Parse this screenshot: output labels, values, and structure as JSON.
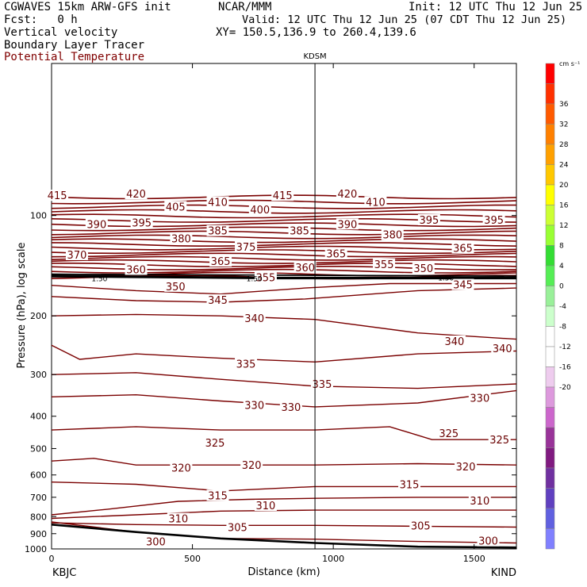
{
  "header": {
    "line1_left": "CGWAVES 15km ARW-GFS init",
    "line1_mid": "NCAR/MMM",
    "line1_right": "Init: 12 UTC Thu 12 Jun 25",
    "fcst": "Fcst:   0 h",
    "valid": "Valid: 12 UTC Thu 12 Jun 25 (07 CDT Thu 12 Jun 25)",
    "field1": "Vertical velocity",
    "xy": "XY= 150.5,136.9 to 260.4,139.6",
    "field2": "Boundary Layer Tracer",
    "field3": "Potential Temperature"
  },
  "chart_data": {
    "type": "cross-section contour",
    "title": "",
    "xlabel": "Distance (km)",
    "ylabel": "Pressure (hPa), log scale",
    "xlim": [
      0,
      1650
    ],
    "x_ticks": [
      0,
      500,
      1000,
      1500
    ],
    "y_ticks": [
      100,
      200,
      300,
      400,
      500,
      600,
      700,
      800,
      900,
      1000
    ],
    "y_scale": "log",
    "left_station": "KBJC",
    "right_station": "KIND",
    "marker": {
      "label": "KDSM",
      "x": 935
    },
    "colorbar": {
      "units": "cm s⁻¹",
      "labels": [
        36,
        32,
        28,
        24,
        20,
        16,
        12,
        8,
        4,
        0,
        -4,
        -8,
        -12,
        -16,
        -20
      ],
      "colors": [
        "#ff0000",
        "#ff3000",
        "#ff5a00",
        "#ff8000",
        "#ffa000",
        "#ffc800",
        "#ffff00",
        "#ccff33",
        "#99ff33",
        "#33dd33",
        "#55ee55",
        "#99f099",
        "#ccffcc",
        "#ffffff",
        "#ffffff",
        "#eeccee",
        "#dd99dd",
        "#cc66cc",
        "#993399",
        "#801a80",
        "#7030a0",
        "#6040c0",
        "#6060e0",
        "#8080ff"
      ]
    },
    "pv_label": "1.50",
    "contour_labels": [
      {
        "v": "415",
        "x": 20,
        "p": 87
      },
      {
        "v": "420",
        "x": 300,
        "p": 86
      },
      {
        "v": "415",
        "x": 820,
        "p": 87
      },
      {
        "v": "420",
        "x": 1050,
        "p": 86
      },
      {
        "v": "405",
        "x": 440,
        "p": 94
      },
      {
        "v": "410",
        "x": 590,
        "p": 91
      },
      {
        "v": "410",
        "x": 1150,
        "p": 91
      },
      {
        "v": "400",
        "x": 740,
        "p": 96
      },
      {
        "v": "390",
        "x": 160,
        "p": 106
      },
      {
        "v": "395",
        "x": 320,
        "p": 105
      },
      {
        "v": "385",
        "x": 590,
        "p": 111
      },
      {
        "v": "385",
        "x": 880,
        "p": 111
      },
      {
        "v": "390",
        "x": 1050,
        "p": 106
      },
      {
        "v": "380",
        "x": 460,
        "p": 117
      },
      {
        "v": "380",
        "x": 1210,
        "p": 114
      },
      {
        "v": "395",
        "x": 1340,
        "p": 103
      },
      {
        "v": "395",
        "x": 1570,
        "p": 103
      },
      {
        "v": "375",
        "x": 690,
        "p": 124
      },
      {
        "v": "370",
        "x": 90,
        "p": 131
      },
      {
        "v": "365",
        "x": 600,
        "p": 137
      },
      {
        "v": "365",
        "x": 1010,
        "p": 130
      },
      {
        "v": "365",
        "x": 1460,
        "p": 125
      },
      {
        "v": "360",
        "x": 300,
        "p": 145
      },
      {
        "v": "360",
        "x": 900,
        "p": 143
      },
      {
        "v": "355",
        "x": 760,
        "p": 153
      },
      {
        "v": "355",
        "x": 1180,
        "p": 140
      },
      {
        "v": "350",
        "x": 1320,
        "p": 144
      },
      {
        "v": "350",
        "x": 440,
        "p": 163
      },
      {
        "v": "345",
        "x": 590,
        "p": 179
      },
      {
        "v": "345",
        "x": 1460,
        "p": 161
      },
      {
        "v": "340",
        "x": 720,
        "p": 203
      },
      {
        "v": "340",
        "x": 1430,
        "p": 238
      },
      {
        "v": "340",
        "x": 1600,
        "p": 250
      },
      {
        "v": "335",
        "x": 690,
        "p": 278
      },
      {
        "v": "335",
        "x": 960,
        "p": 320
      },
      {
        "v": "330",
        "x": 720,
        "p": 370
      },
      {
        "v": "330",
        "x": 850,
        "p": 375
      },
      {
        "v": "330",
        "x": 1520,
        "p": 352
      },
      {
        "v": "325",
        "x": 580,
        "p": 480
      },
      {
        "v": "325",
        "x": 1410,
        "p": 450
      },
      {
        "v": "325",
        "x": 1590,
        "p": 470
      },
      {
        "v": "320",
        "x": 460,
        "p": 570
      },
      {
        "v": "320",
        "x": 710,
        "p": 560
      },
      {
        "v": "320",
        "x": 1470,
        "p": 565
      },
      {
        "v": "315",
        "x": 590,
        "p": 690
      },
      {
        "v": "315",
        "x": 1270,
        "p": 640
      },
      {
        "v": "310",
        "x": 760,
        "p": 740
      },
      {
        "v": "310",
        "x": 450,
        "p": 810
      },
      {
        "v": "310",
        "x": 1520,
        "p": 715
      },
      {
        "v": "305",
        "x": 660,
        "p": 860
      },
      {
        "v": "305",
        "x": 1310,
        "p": 850
      },
      {
        "v": "300",
        "x": 370,
        "p": 950
      },
      {
        "v": "300",
        "x": 1550,
        "p": 945
      }
    ]
  }
}
